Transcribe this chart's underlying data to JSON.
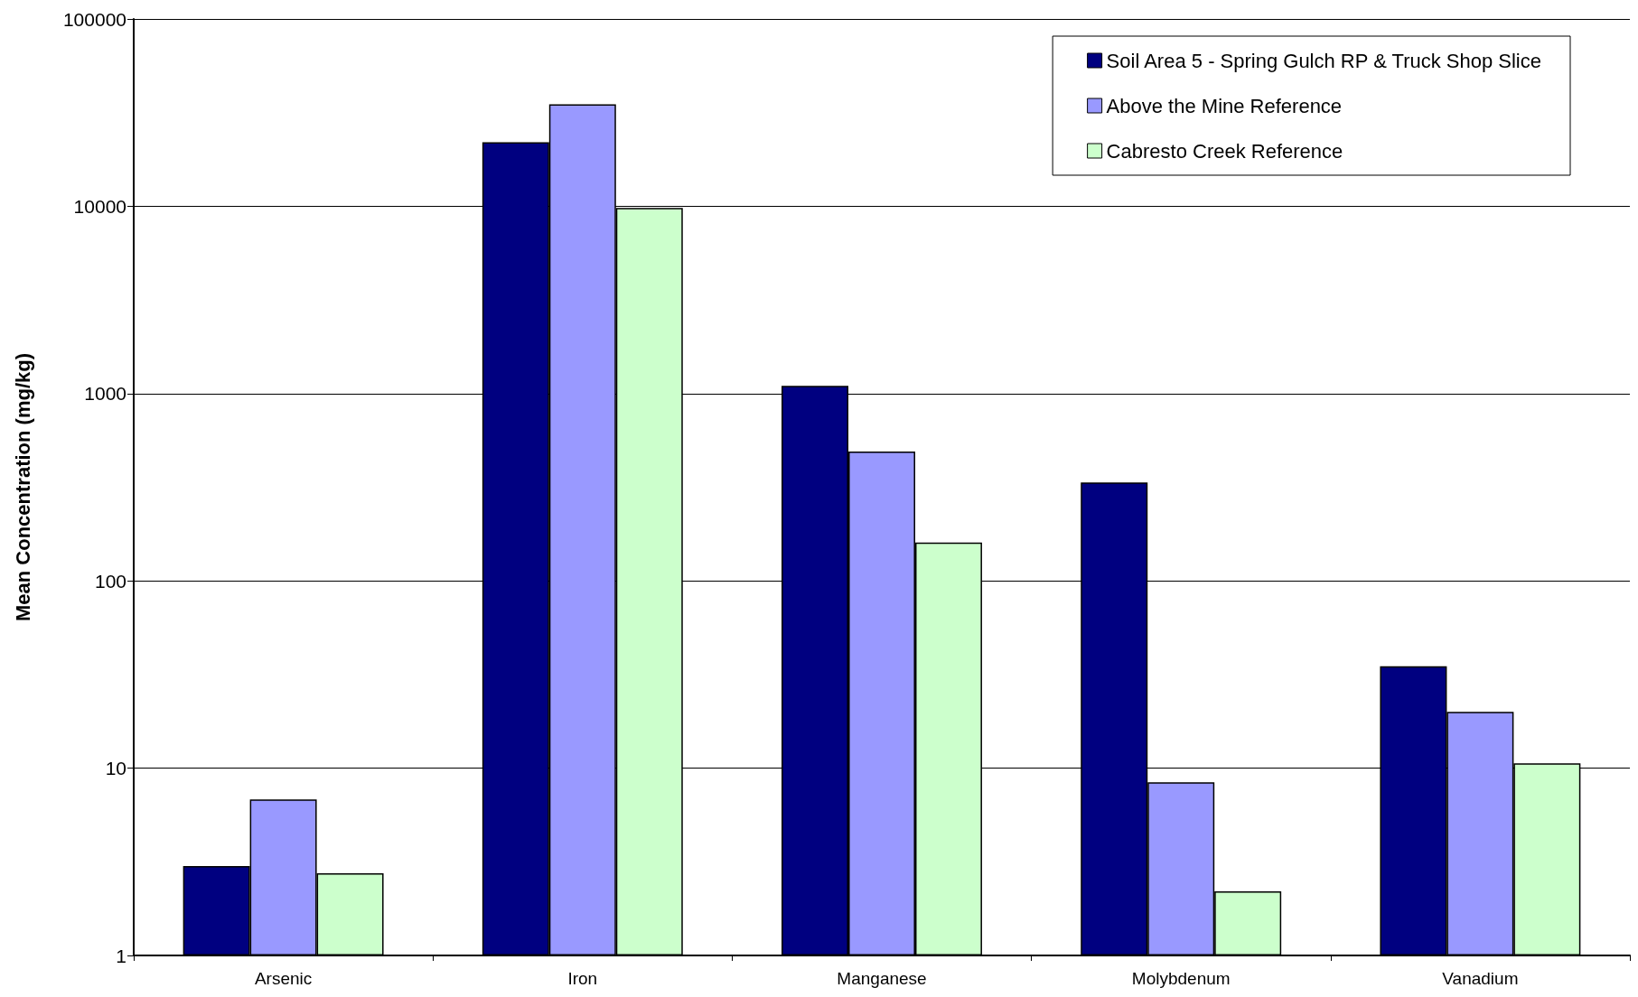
{
  "chart_data": {
    "type": "bar",
    "ylabel": "Mean Concentration (mg/kg)",
    "categories": [
      "Arsenic",
      "Iron",
      "Manganese",
      "Molybdenum",
      "Vanadium"
    ],
    "series": [
      {
        "name": "Soil Area 5 - Spring Gulch RP & Truck Shop Slice",
        "color": "#000080",
        "values": [
          3.0,
          22000,
          1100,
          335,
          35
        ]
      },
      {
        "name": "Above the Mine Reference",
        "color": "#9999ff",
        "values": [
          6.8,
          35000,
          490,
          8.4,
          20
        ]
      },
      {
        "name": "Cabresto Creek Reference",
        "color": "#ccffcc",
        "values": [
          2.75,
          9800,
          160,
          2.2,
          10.6
        ]
      }
    ],
    "log": true,
    "ylim": [
      1,
      100000
    ],
    "yticks": [
      1,
      10,
      100,
      1000,
      10000,
      100000
    ],
    "grid": "y",
    "legend": "top right"
  }
}
